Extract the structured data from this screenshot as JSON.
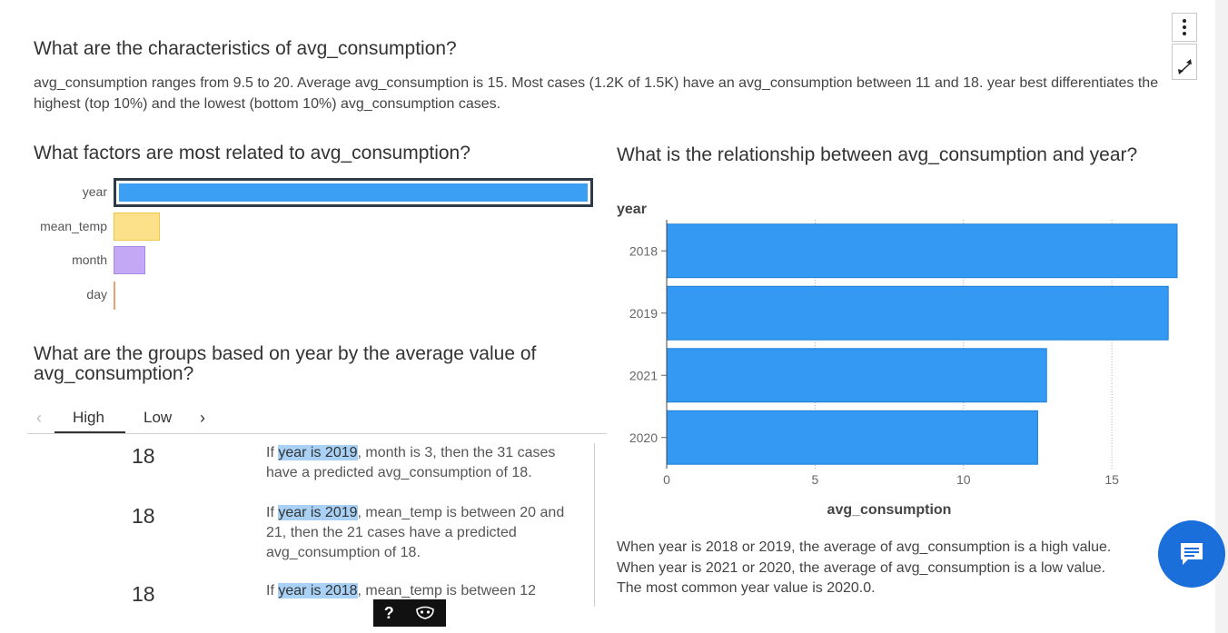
{
  "menu_icon": "vertical-ellipsis-icon",
  "expand_icon": "expand-arrows-icon",
  "characteristics": {
    "title": "What are the characteristics of avg_consumption?",
    "summary": "avg_consumption ranges from 9.5 to 20. Average avg_consumption is 15. Most cases (1.2K of 1.5K) have an avg_consumption between 11 and 18. year best differentiates the highest (top 10%) and the lowest (bottom 10%) avg_consumption cases."
  },
  "factors": {
    "title": "What factors are most related to avg_consumption?",
    "items": [
      {
        "label": "year",
        "value": 1.0,
        "color": "#3ba0f3",
        "selected": true
      },
      {
        "label": "mean_temp",
        "value": 0.1,
        "color": "#fde08a"
      },
      {
        "label": "month",
        "value": 0.067,
        "color": "#c2a8f5"
      },
      {
        "label": "day",
        "value": 0.004,
        "color": "#f0a070"
      }
    ]
  },
  "groups": {
    "title": "What are the groups based on year by the average value of avg_consumption?",
    "tabs": [
      {
        "label": "High",
        "active": true
      },
      {
        "label": "Low",
        "active": false
      }
    ],
    "prev_icon": "chevron-left-icon",
    "next_icon": "chevron-right-icon",
    "rules": [
      {
        "value": "18",
        "prefix": "If ",
        "highlight": "year is 2019",
        "rest": ", month is 3, then the 31 cases have a predicted avg_consumption of 18."
      },
      {
        "value": "18",
        "prefix": "If ",
        "highlight": "year is 2019",
        "rest": ", mean_temp is between 20 and 21, then the 21 cases have a predicted avg_consumption of 18."
      },
      {
        "value": "18",
        "prefix": "If ",
        "highlight": "year is 2018",
        "rest": ", mean_temp is between 12"
      }
    ]
  },
  "relationship": {
    "title": "What is the relationship between avg_consumption and year?",
    "insight": [
      "When year is 2018 or 2019, the average of avg_consumption is a high value.",
      "When year is 2021 or 2020, the average of avg_consumption is a low value.",
      "The most common year value is 2020.0."
    ]
  },
  "chart_data": {
    "type": "bar",
    "orientation": "horizontal",
    "categories": [
      "2018",
      "2019",
      "2021",
      "2020"
    ],
    "values": [
      17.2,
      16.9,
      12.8,
      12.5
    ],
    "xlabel": "avg_consumption",
    "ylabel": "year",
    "xlim": [
      0,
      17.2
    ],
    "xticks": [
      0,
      5,
      10,
      15
    ],
    "grid": true,
    "color": "#3399f3"
  },
  "toolbar": {
    "help_label": "?",
    "help_icon": "question-mark-icon",
    "mask_icon": "mask-icon"
  },
  "chat_icon": "chat-bubble-icon"
}
